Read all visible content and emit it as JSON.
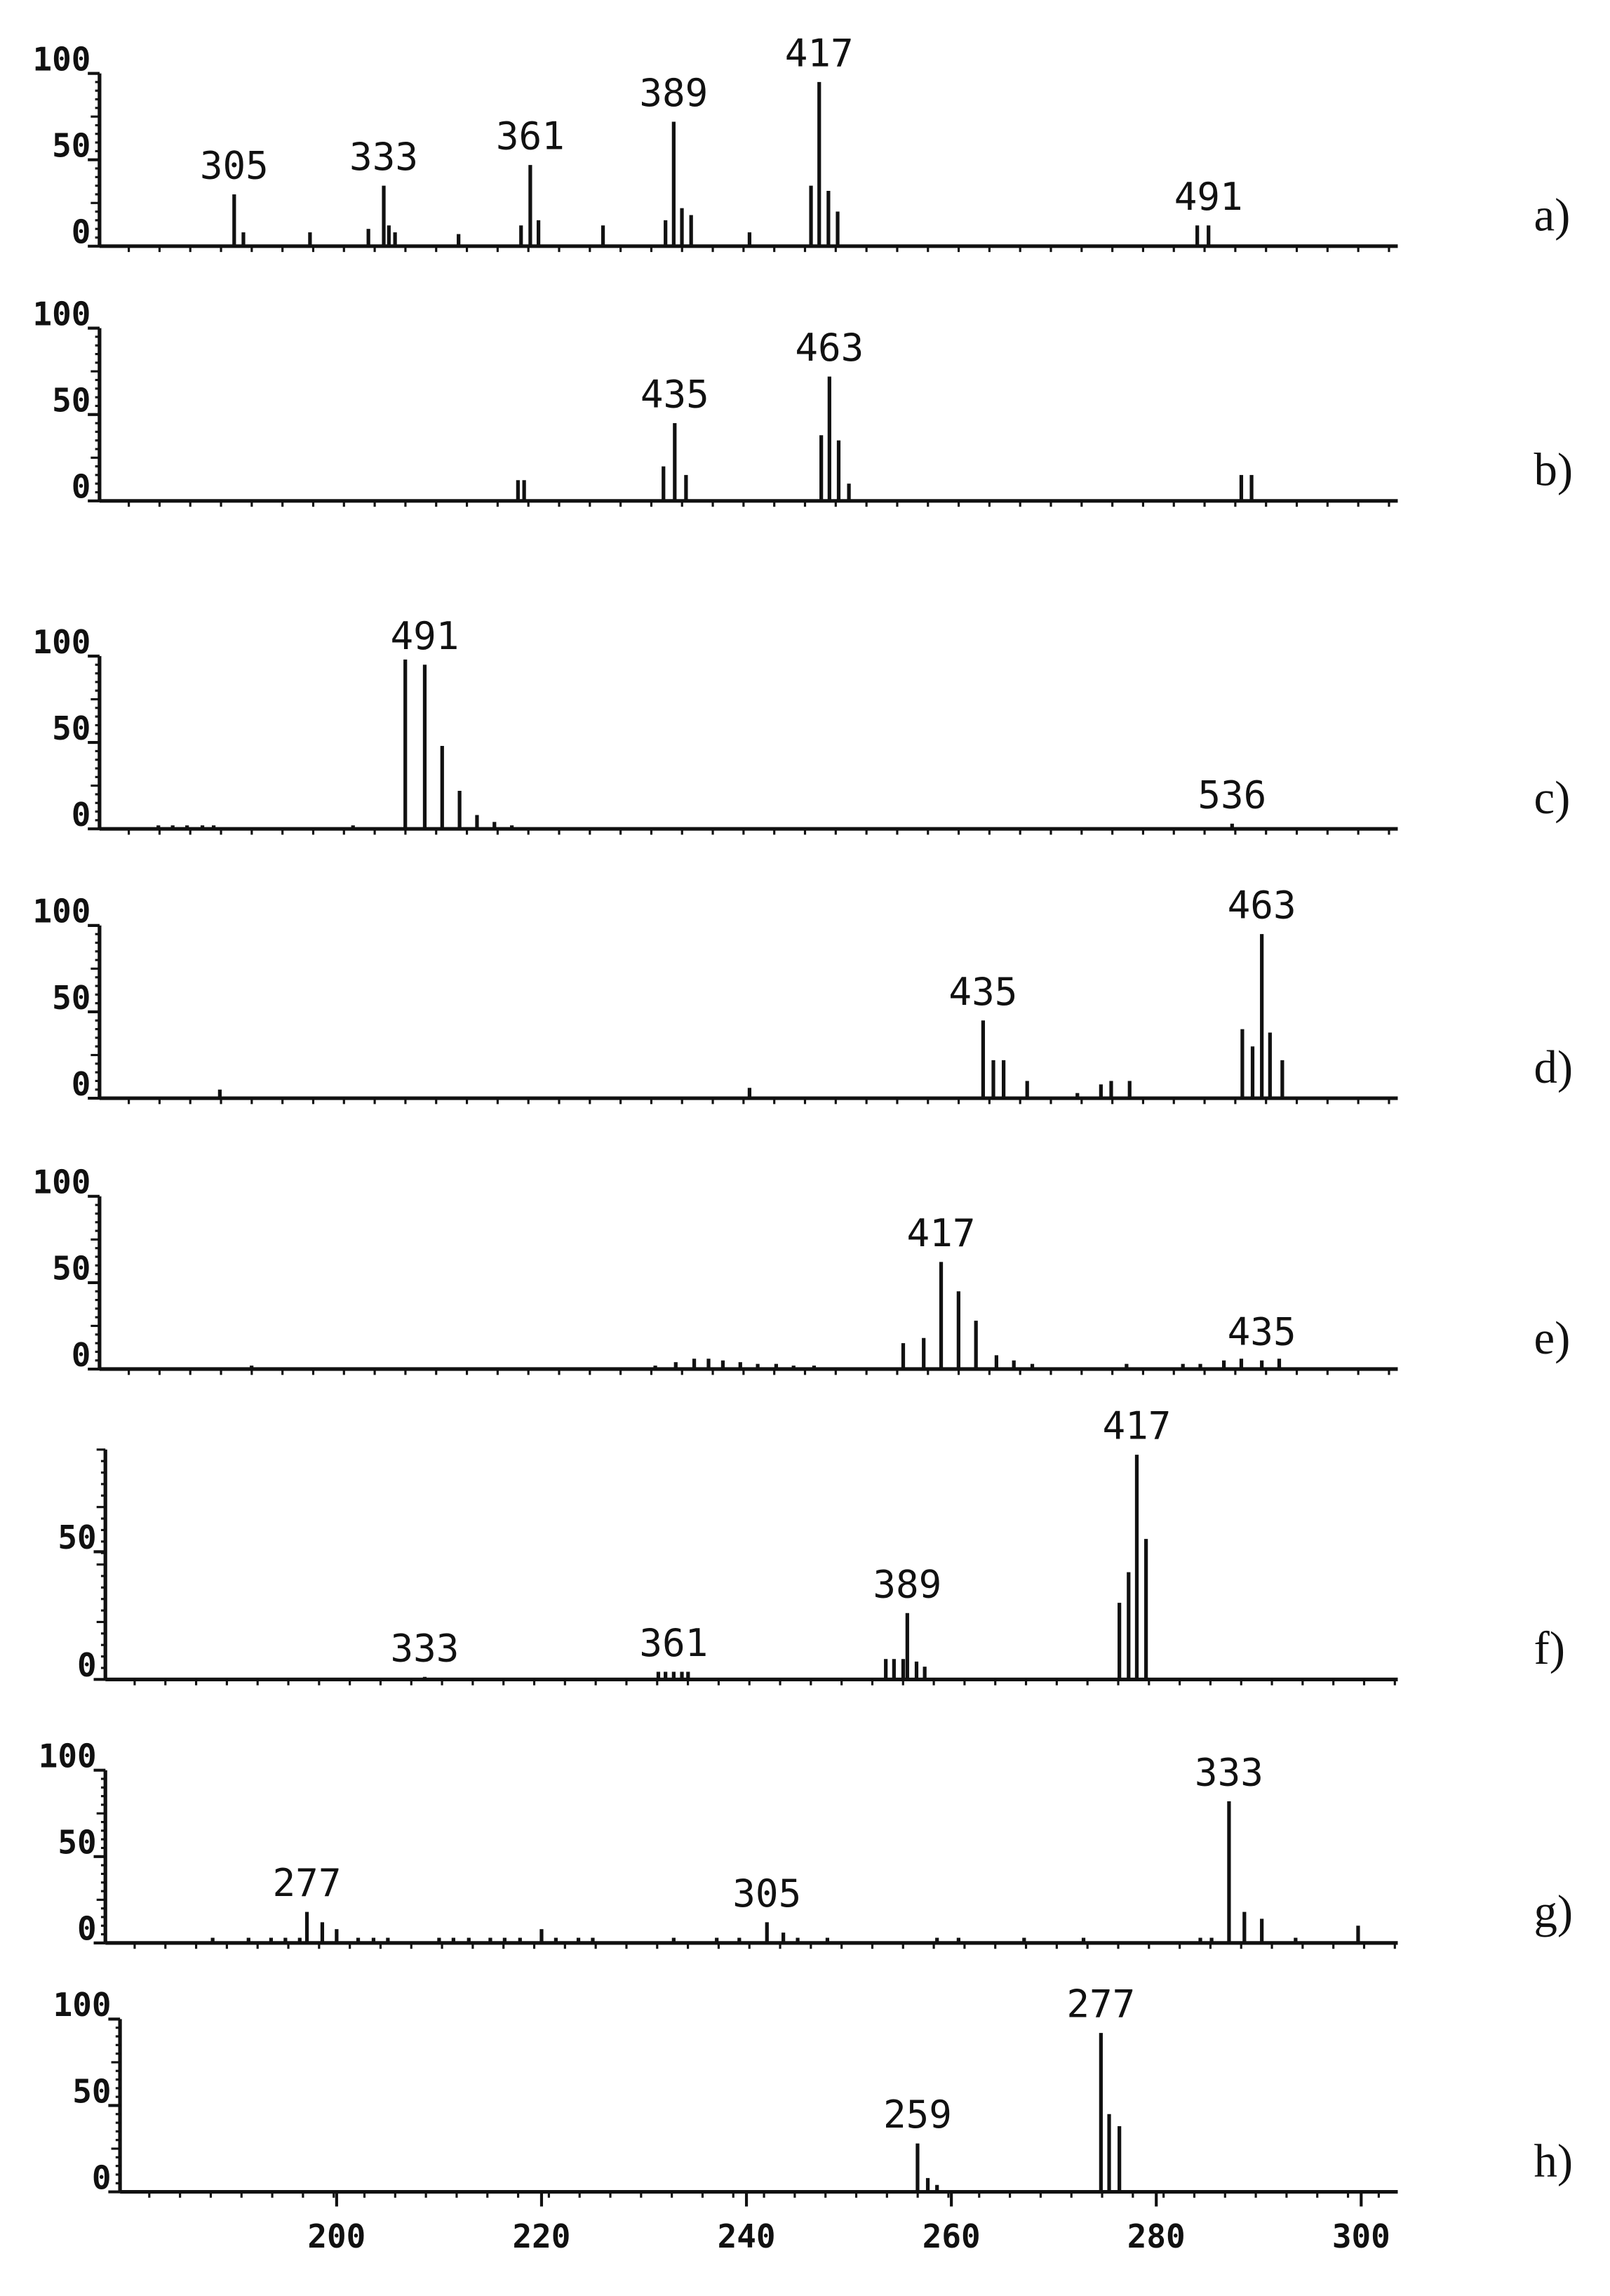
{
  "chart_data": [
    {
      "type": "bar",
      "panel_label": "a)",
      "xlim": [
        178,
        304
      ],
      "ylim": [
        0,
        100
      ],
      "yticks": [
        100,
        50,
        0
      ],
      "x": [
        190.0,
        190.9,
        197.4,
        203.1,
        204.6,
        205.1,
        205.7,
        211.9,
        218.0,
        218.9,
        219.7,
        226.0,
        232.1,
        232.9,
        233.7,
        234.6,
        240.3,
        246.3,
        247.1,
        248.0,
        248.9,
        284.0,
        285.1
      ],
      "values": [
        30,
        8,
        8,
        10,
        35,
        12,
        8,
        7,
        12,
        47,
        15,
        12,
        15,
        72,
        22,
        18,
        8,
        35,
        95,
        32,
        20,
        12,
        12
      ],
      "peak_labels": [
        "305",
        null,
        null,
        null,
        "333",
        null,
        null,
        null,
        null,
        "361",
        null,
        null,
        null,
        "389",
        null,
        null,
        null,
        null,
        "417",
        null,
        null,
        null,
        "491"
      ]
    },
    {
      "type": "bar",
      "panel_label": "b)",
      "xlim": [
        178,
        304
      ],
      "ylim": [
        0,
        100
      ],
      "yticks": [
        100,
        50,
        0
      ],
      "x": [
        217.7,
        218.3,
        231.9,
        233.0,
        234.1,
        247.3,
        248.1,
        249.0,
        250.0,
        288.3,
        289.3
      ],
      "values": [
        12,
        12,
        20,
        45,
        15,
        38,
        72,
        35,
        10,
        15,
        15
      ],
      "peak_labels": [
        null,
        null,
        null,
        "435",
        null,
        null,
        "463",
        null,
        null,
        null,
        null
      ]
    },
    {
      "type": "bar",
      "panel_label": "c)",
      "xlim": [
        178,
        304
      ],
      "ylim": [
        0,
        100
      ],
      "yticks": [
        100,
        50,
        0
      ],
      "x": [
        182.6,
        184.0,
        185.4,
        186.9,
        188.0,
        201.6,
        206.7,
        208.6,
        210.3,
        212.0,
        213.7,
        215.4,
        217.1,
        287.4
      ],
      "values": [
        2,
        2,
        2,
        2,
        2,
        2,
        98,
        95,
        48,
        22,
        8,
        4,
        2,
        3
      ],
      "peak_labels": [
        null,
        null,
        null,
        null,
        null,
        null,
        null,
        "491",
        null,
        null,
        null,
        null,
        null,
        "536"
      ]
    },
    {
      "type": "bar",
      "panel_label": "d)",
      "xlim": [
        178,
        304
      ],
      "ylim": [
        0,
        100
      ],
      "yticks": [
        100,
        50,
        0
      ],
      "x": [
        188.6,
        240.3,
        263.1,
        264.1,
        265.1,
        267.4,
        272.3,
        274.6,
        275.6,
        277.4,
        288.4,
        289.4,
        290.3,
        291.1,
        292.3
      ],
      "values": [
        5,
        6,
        45,
        22,
        22,
        10,
        3,
        8,
        10,
        10,
        40,
        30,
        95,
        38,
        22
      ],
      "peak_labels": [
        null,
        null,
        "435",
        null,
        null,
        null,
        null,
        null,
        null,
        null,
        null,
        null,
        "463",
        null,
        null
      ]
    },
    {
      "type": "bar",
      "panel_label": "e)",
      "xlim": [
        178,
        304
      ],
      "ylim": [
        0,
        100
      ],
      "yticks": [
        100,
        50,
        0
      ],
      "x": [
        191.7,
        231.1,
        233.1,
        234.9,
        236.3,
        237.7,
        239.4,
        241.1,
        242.9,
        244.6,
        246.6,
        255.3,
        257.3,
        259.0,
        260.7,
        262.4,
        264.4,
        266.1,
        267.9,
        277.1,
        282.6,
        284.3,
        286.6,
        288.3,
        290.3,
        292.0
      ],
      "values": [
        2,
        2,
        4,
        6,
        6,
        5,
        4,
        3,
        3,
        2,
        2,
        15,
        18,
        62,
        45,
        28,
        8,
        5,
        3,
        3,
        3,
        3,
        5,
        6,
        5,
        6
      ],
      "peak_labels": [
        null,
        null,
        null,
        null,
        null,
        null,
        null,
        null,
        null,
        null,
        null,
        null,
        null,
        "417",
        null,
        null,
        null,
        null,
        null,
        null,
        null,
        null,
        null,
        null,
        "435",
        null
      ]
    },
    {
      "type": "bar",
      "panel_label": "f)",
      "xlim": [
        178,
        304
      ],
      "ylim": [
        0,
        90
      ],
      "yticks": [
        50,
        0
      ],
      "x": [
        208.6,
        231.4,
        232.1,
        232.9,
        233.7,
        234.3,
        253.6,
        254.4,
        255.3,
        255.7,
        256.6,
        257.4,
        276.4,
        277.3,
        278.1,
        279.0
      ],
      "values": [
        1,
        3,
        3,
        3,
        3,
        3,
        8,
        8,
        8,
        26,
        7,
        5,
        30,
        42,
        88,
        55
      ],
      "peak_labels": [
        "333",
        null,
        null,
        "361",
        null,
        null,
        null,
        null,
        null,
        "389",
        null,
        null,
        null,
        null,
        "417",
        null
      ]
    },
    {
      "type": "bar",
      "panel_label": "g)",
      "xlim": [
        178,
        304
      ],
      "ylim": [
        0,
        100
      ],
      "yticks": [
        100,
        50,
        0
      ],
      "x": [
        187.9,
        191.4,
        193.6,
        195.0,
        196.4,
        197.1,
        198.6,
        200.0,
        202.1,
        203.6,
        205.0,
        210.0,
        211.4,
        212.9,
        215.0,
        216.4,
        217.9,
        220.0,
        221.4,
        223.6,
        225.0,
        232.9,
        237.1,
        239.3,
        242.0,
        243.6,
        245.0,
        247.9,
        258.6,
        260.7,
        267.1,
        272.9,
        284.3,
        285.4,
        287.1,
        288.6,
        290.3,
        293.6,
        299.7
      ],
      "values": [
        3,
        3,
        3,
        3,
        3,
        18,
        12,
        8,
        3,
        3,
        3,
        3,
        3,
        3,
        3,
        3,
        3,
        8,
        3,
        3,
        3,
        3,
        3,
        3,
        12,
        6,
        3,
        3,
        3,
        3,
        3,
        3,
        3,
        3,
        82,
        18,
        14,
        3,
        10
      ],
      "peak_labels": [
        null,
        null,
        null,
        null,
        null,
        "277",
        null,
        null,
        null,
        null,
        null,
        null,
        null,
        null,
        null,
        null,
        null,
        null,
        null,
        null,
        null,
        null,
        null,
        null,
        "305",
        null,
        null,
        null,
        null,
        null,
        null,
        null,
        null,
        null,
        "333",
        null,
        null,
        null,
        null
      ]
    },
    {
      "type": "bar",
      "panel_label": "h)",
      "xlim": [
        178,
        304
      ],
      "ylim": [
        0,
        100
      ],
      "yticks": [
        100,
        50,
        0
      ],
      "xticks": [
        200,
        220,
        240,
        260,
        280,
        300
      ],
      "x": [
        256.7,
        257.7,
        258.6,
        274.6,
        275.4,
        276.4
      ],
      "values": [
        28,
        8,
        4,
        92,
        45,
        38
      ],
      "peak_labels": [
        "259",
        null,
        null,
        "277",
        null,
        null
      ]
    }
  ]
}
